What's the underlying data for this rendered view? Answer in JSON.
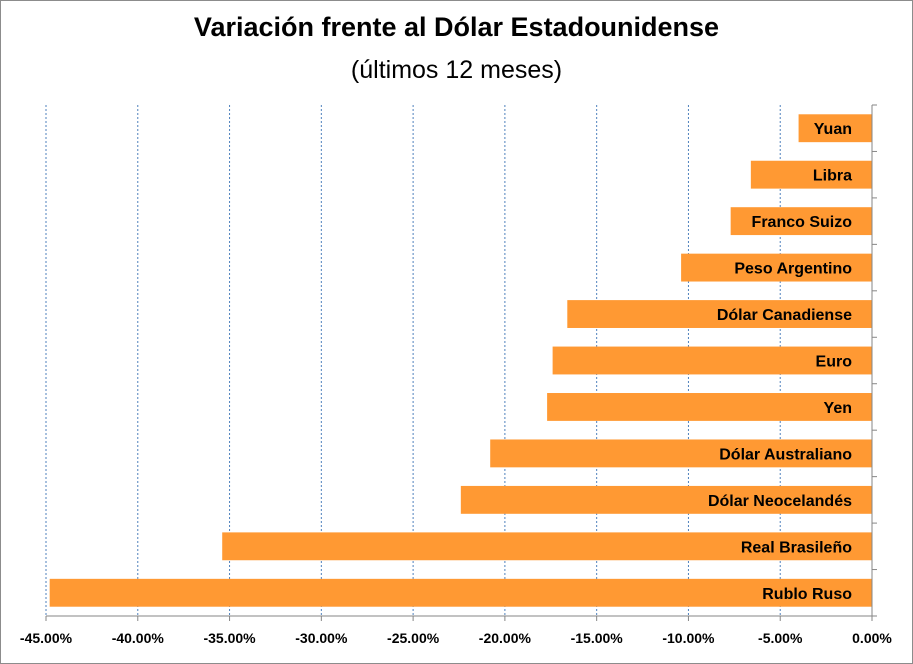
{
  "chart_data": {
    "type": "bar",
    "orientation": "horizontal",
    "title": "Variación frente al Dólar Estadounidense",
    "subtitle": "(últimos 12 meses)",
    "categories": [
      "Yuan",
      "Libra",
      "Franco Suizo",
      "Peso Argentino",
      "Dólar Canadiense",
      "Euro",
      "Yen",
      "Dólar Australiano",
      "Dólar Neocelandés",
      "Real Brasileño",
      "Rublo Ruso"
    ],
    "values": [
      -4.0,
      -6.6,
      -7.7,
      -10.4,
      -16.6,
      -17.4,
      -17.7,
      -20.8,
      -22.4,
      -35.4,
      -44.8
    ],
    "xlim": [
      -45,
      0
    ],
    "x_ticks": [
      "-45.00%",
      "-40.00%",
      "-35.00%",
      "-30.00%",
      "-25.00%",
      "-20.00%",
      "-15.00%",
      "-10.00%",
      "-5.00%",
      "0.00%"
    ],
    "x_tick_values": [
      -45,
      -40,
      -35,
      -30,
      -25,
      -20,
      -15,
      -10,
      -5,
      0
    ],
    "grid": "vertical-dashed",
    "bar_color": "#ff9933"
  }
}
